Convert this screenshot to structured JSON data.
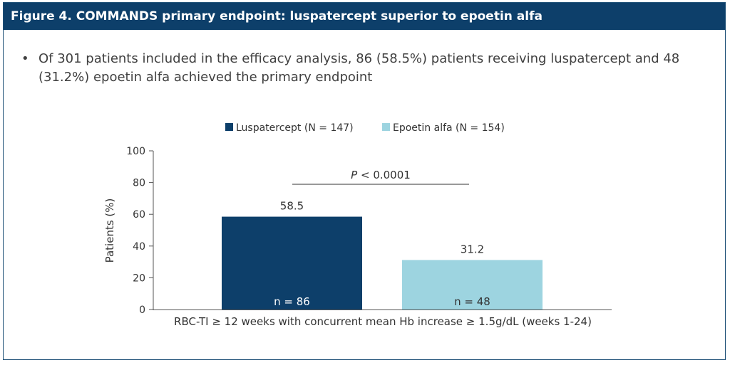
{
  "header": {
    "title": "Figure 4. COMMANDS primary endpoint: luspatercept superior to epoetin alfa"
  },
  "bullet": {
    "marker": "•",
    "text": "Of 301 patients included in the efficacy analysis, 86 (58.5%) patients receiving luspatercept and 48 (31.2%) epoetin alfa achieved the primary endpoint"
  },
  "colors": {
    "header_bg": "#0d3f6a",
    "series1": "#0d3f6a",
    "series2": "#9dd4e0"
  },
  "chart_data": {
    "type": "bar",
    "categories": [
      "RBC-TI ≥ 12 weeks with concurrent mean Hb increase ≥ 1.5g/dL (weeks 1-24)"
    ],
    "xlabel": "RBC-TI ≥ 12 weeks with concurrent mean Hb increase ≥ 1.5g/dL (weeks 1-24)",
    "ylabel": "Patients (%)",
    "ylim": [
      0,
      100
    ],
    "yticks": [
      "0",
      "20",
      "40",
      "60",
      "80",
      "100"
    ],
    "grid": false,
    "legend_position": "top-center",
    "series": [
      {
        "name": "Luspatercept (N = 147)",
        "values": [
          58.5
        ],
        "value_label": "58.5",
        "n_label": "n = 86",
        "color": "#0d3f6a",
        "n_label_color": "#ffffff"
      },
      {
        "name": "Epoetin alfa (N = 154)",
        "values": [
          31.2
        ],
        "value_label": "31.2",
        "n_label": "n = 48",
        "color": "#9dd4e0",
        "n_label_color": "#333333"
      }
    ],
    "annotation": {
      "p_prefix": "P",
      "p_suffix": " < 0.0001"
    }
  }
}
